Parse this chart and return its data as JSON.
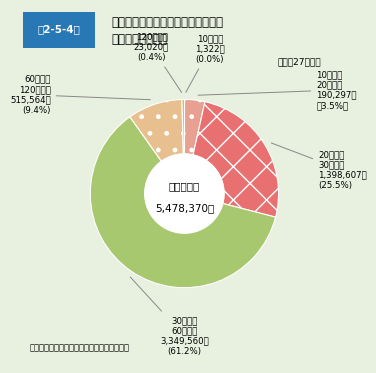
{
  "title_box_label": "第2-5-4図",
  "title_box_color": "#2878b5",
  "title_main": "救急自動車による病院収容所要時間\n別搬送人員の状況",
  "year_note": "（平成27年中）",
  "center_label_line1": "全搬送人員",
  "center_label_line2": "5,478,370人",
  "slices": [
    {
      "label_jp": "10分未満",
      "value": 1322,
      "pct": 0.0,
      "color": "#d4b44a",
      "hatch": "",
      "display": "10分未満\n1,322人\n(0.0%)"
    },
    {
      "label_jp": "10分以上20分未満",
      "value": 190297,
      "pct": 3.5,
      "color": "#e8a090",
      "hatch": "...",
      "display": "10分以上\n20分未満\n190,297人\n（3.5%）"
    },
    {
      "label_jp": "20分以上30分未満",
      "value": 1398607,
      "pct": 25.5,
      "color": "#e8a090",
      "hatch": "xxx",
      "display": "20分以上\n30分未満\n1,398,607人\n(25.5%)"
    },
    {
      "label_jp": "30分以上60分未満",
      "value": 3349560,
      "pct": 61.2,
      "color": "#a8c870",
      "hatch": "",
      "display": "30分以上\n60分未満\n3,349,560人\n(61.2%)"
    },
    {
      "label_jp": "60分以上120分未満",
      "value": 515564,
      "pct": 9.4,
      "color": "#e8c090",
      "hatch": "...",
      "display": "60分以上\n120分未満\n515,564人\n(9.4%)"
    },
    {
      "label_jp": "120分以上",
      "value": 23020,
      "pct": 0.4,
      "color": "#e8c090",
      "hatch": "",
      "display": "120分以上\n23,020人\n(0.4%)"
    }
  ],
  "background_color": "#e8f0e0",
  "footer": "（備考）「救急業務実施状況調」により作成"
}
